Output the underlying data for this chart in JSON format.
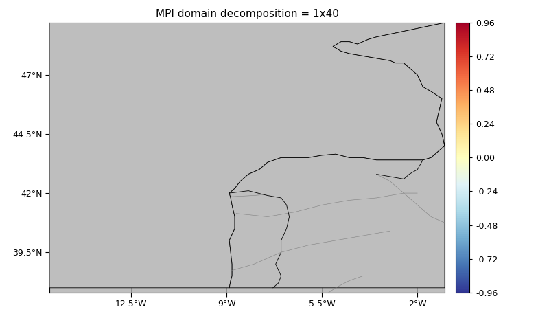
{
  "title": "MPI domain decomposition = 1x40",
  "lon_min": -15.5,
  "lon_max": -1.0,
  "lat_min": 37.8,
  "lat_max": 49.2,
  "colorbar_min": -0.96,
  "colorbar_max": 0.96,
  "colorbar_ticks": [
    0.96,
    0.72,
    0.48,
    0.24,
    0.0,
    -0.24,
    -0.48,
    -0.72,
    -0.96
  ],
  "xticks": [
    -12.5,
    -9.0,
    -5.5,
    -2.0
  ],
  "yticks": [
    39.5,
    42.0,
    44.5,
    47.0
  ],
  "xtick_labels": [
    "12.5°W",
    "9°W",
    "5.5°W",
    "2°W"
  ],
  "ytick_labels": [
    "39.5°N",
    "42°N",
    "44.5°N",
    "47°N"
  ],
  "land_color": "#bebebe",
  "background_color": "#ffffff",
  "cmap": "RdYlBu_r",
  "grid_color": "#808080",
  "title_fontsize": 11
}
